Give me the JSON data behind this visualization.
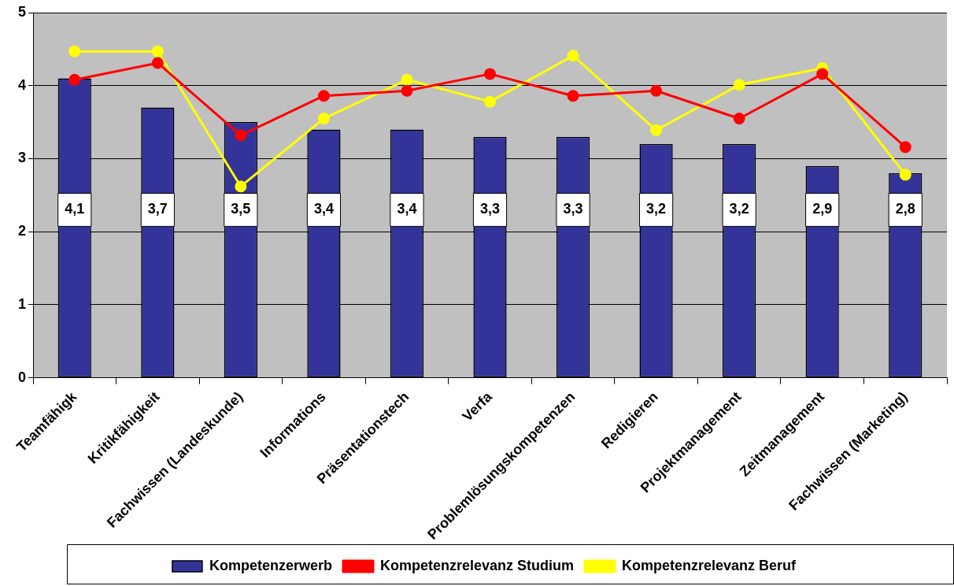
{
  "chart_data": {
    "type": "bar",
    "categories": [
      "Teamfähigk",
      "Kritikfähigkeit",
      "Fachwissen (Landeskunde)",
      "Informations",
      "Präsentationstech",
      "Verfa",
      "Problemlösungskompetenzen",
      "Redigieren",
      "Projektmanagement",
      "Zeitmanagement",
      "Fachwissen (Marketing)"
    ],
    "series": [
      {
        "name": "Kompetenzerwerb",
        "color": "#333399",
        "values": [
          4.1,
          3.7,
          3.5,
          3.4,
          3.4,
          3.3,
          3.3,
          3.2,
          3.2,
          2.9,
          2.8
        ],
        "value_labels": [
          "4,1",
          "3,7",
          "3,5",
          "3,4",
          "3,4",
          "3,3",
          "3,3",
          "3,2",
          "3,2",
          "2,9",
          "2,8"
        ]
      },
      {
        "name": "Kompetenzrelevanz Studium",
        "type": "line",
        "color": "#ff0000",
        "values": [
          4.08,
          4.31,
          3.32,
          3.86,
          3.93,
          4.16,
          3.86,
          3.93,
          3.55,
          4.16,
          3.16
        ]
      },
      {
        "name": "Kompetenzrelevanz Beruf",
        "type": "line",
        "color": "#ffff00",
        "values": [
          4.47,
          4.47,
          2.62,
          3.55,
          4.08,
          3.78,
          4.41,
          3.39,
          4.01,
          4.24,
          2.78
        ]
      }
    ],
    "ylim": [
      0,
      5
    ],
    "yticks": [
      0,
      1,
      2,
      3,
      4,
      5
    ],
    "grid": "y",
    "legend": "bottom",
    "marker": "circle",
    "line_style": "solid"
  }
}
